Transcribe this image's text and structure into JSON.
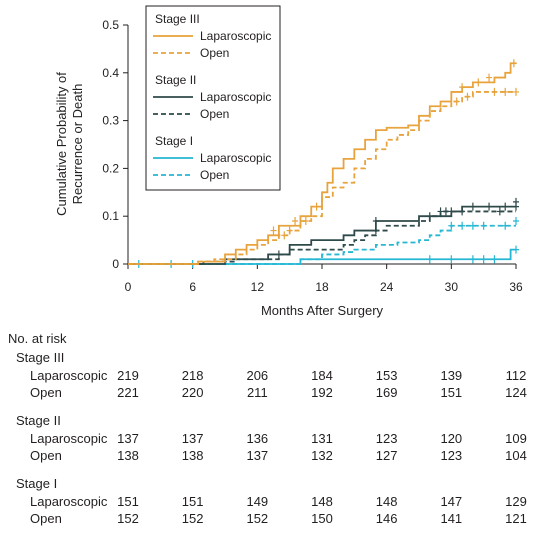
{
  "colors": {
    "stage_iii": "#E8A33D",
    "stage_ii": "#2F4A4A",
    "stage_i": "#25B7D3",
    "axis": "#231f20"
  },
  "chart_data": {
    "type": "line",
    "step": true,
    "title": "",
    "xlabel": "Months After Surgery",
    "ylabel_lines": [
      "Cumulative Probability of",
      "Recurrence or Death"
    ],
    "xlim": [
      0,
      36
    ],
    "ylim": [
      0,
      0.5
    ],
    "xticks": [
      "0",
      "6",
      "12",
      "18",
      "24",
      "30",
      "36"
    ],
    "yticks": [
      "0",
      "0.1",
      "0.2",
      "0.3",
      "0.4",
      "0.5"
    ],
    "grid": false,
    "legend": {
      "position": "top-left",
      "groups": [
        {
          "title": "Stage III",
          "entries": [
            "Laparoscopic",
            "Open"
          ]
        },
        {
          "title": "Stage II",
          "entries": [
            "Laparoscopic",
            "Open"
          ]
        },
        {
          "title": "Stage I",
          "entries": [
            "Laparoscopic",
            "Open"
          ]
        }
      ]
    },
    "series": [
      {
        "group": "Stage III",
        "name": "Laparoscopic",
        "style": "solid",
        "color": "#E8A33D",
        "points": [
          [
            0,
            0
          ],
          [
            6.5,
            0.005
          ],
          [
            9,
            0.02
          ],
          [
            10,
            0.03
          ],
          [
            11,
            0.04
          ],
          [
            12,
            0.05
          ],
          [
            13,
            0.06
          ],
          [
            14,
            0.08
          ],
          [
            16,
            0.1
          ],
          [
            17,
            0.12
          ],
          [
            18,
            0.15
          ],
          [
            18.5,
            0.17
          ],
          [
            19,
            0.2
          ],
          [
            20,
            0.22
          ],
          [
            21,
            0.24
          ],
          [
            22,
            0.26
          ],
          [
            23,
            0.28
          ],
          [
            24,
            0.285
          ],
          [
            26,
            0.29
          ],
          [
            27,
            0.31
          ],
          [
            28,
            0.33
          ],
          [
            29,
            0.34
          ],
          [
            30,
            0.36
          ],
          [
            31,
            0.37
          ],
          [
            32,
            0.38
          ],
          [
            33,
            0.38
          ],
          [
            34,
            0.39
          ],
          [
            35,
            0.4
          ],
          [
            35.5,
            0.42
          ],
          [
            36,
            0.42
          ]
        ],
        "censors": [
          [
            13.5,
            0.07
          ],
          [
            15.5,
            0.09
          ],
          [
            17.5,
            0.12
          ],
          [
            31,
            0.37
          ],
          [
            32.5,
            0.38
          ],
          [
            33.5,
            0.39
          ],
          [
            35.8,
            0.42
          ]
        ]
      },
      {
        "group": "Stage III",
        "name": "Open",
        "style": "dashed",
        "color": "#E8A33D",
        "points": [
          [
            0,
            0
          ],
          [
            6.5,
            0.005
          ],
          [
            8,
            0.01
          ],
          [
            10,
            0.02
          ],
          [
            11,
            0.03
          ],
          [
            12,
            0.04
          ],
          [
            13,
            0.05
          ],
          [
            14,
            0.06
          ],
          [
            15,
            0.07
          ],
          [
            16,
            0.09
          ],
          [
            17,
            0.1
          ],
          [
            18,
            0.14
          ],
          [
            19,
            0.16
          ],
          [
            20,
            0.17
          ],
          [
            21,
            0.2
          ],
          [
            22,
            0.22
          ],
          [
            23,
            0.24
          ],
          [
            24,
            0.26
          ],
          [
            25,
            0.27
          ],
          [
            26,
            0.28
          ],
          [
            27,
            0.3
          ],
          [
            28,
            0.32
          ],
          [
            29,
            0.33
          ],
          [
            30,
            0.34
          ],
          [
            31,
            0.35
          ],
          [
            32,
            0.36
          ],
          [
            36,
            0.36
          ]
        ],
        "censors": [
          [
            14.5,
            0.06
          ],
          [
            15,
            0.07
          ],
          [
            16.5,
            0.09
          ],
          [
            30.5,
            0.34
          ],
          [
            31.5,
            0.35
          ],
          [
            34,
            0.36
          ],
          [
            35,
            0.36
          ],
          [
            36,
            0.36
          ]
        ]
      },
      {
        "group": "Stage II",
        "name": "Laparoscopic",
        "style": "solid",
        "color": "#2F4A4A",
        "points": [
          [
            0,
            0
          ],
          [
            7,
            0
          ],
          [
            9,
            0.01
          ],
          [
            13,
            0.02
          ],
          [
            15,
            0.04
          ],
          [
            17,
            0.05
          ],
          [
            20,
            0.06
          ],
          [
            21,
            0.07
          ],
          [
            23,
            0.09
          ],
          [
            27,
            0.1
          ],
          [
            30,
            0.11
          ],
          [
            31,
            0.12
          ],
          [
            36,
            0.12
          ]
        ],
        "censors": [
          [
            23,
            0.09
          ],
          [
            28,
            0.1
          ],
          [
            29.5,
            0.11
          ],
          [
            32,
            0.12
          ],
          [
            33.5,
            0.12
          ],
          [
            35,
            0.12
          ],
          [
            36,
            0.13
          ]
        ]
      },
      {
        "group": "Stage II",
        "name": "Open",
        "style": "dashed",
        "color": "#2F4A4A",
        "points": [
          [
            0,
            0
          ],
          [
            6,
            0
          ],
          [
            7,
            0.005
          ],
          [
            10,
            0.01
          ],
          [
            14,
            0.02
          ],
          [
            15,
            0.03
          ],
          [
            20,
            0.04
          ],
          [
            21,
            0.05
          ],
          [
            22,
            0.06
          ],
          [
            23,
            0.07
          ],
          [
            24,
            0.08
          ],
          [
            27,
            0.09
          ],
          [
            28,
            0.1
          ],
          [
            29,
            0.11
          ],
          [
            33,
            0.11
          ],
          [
            36,
            0.11
          ]
        ],
        "censors": [
          [
            14,
            0.02
          ],
          [
            23,
            0.07
          ],
          [
            29,
            0.11
          ],
          [
            30,
            0.11
          ],
          [
            31,
            0.11
          ],
          [
            34.5,
            0.11
          ],
          [
            36,
            0.12
          ]
        ]
      },
      {
        "group": "Stage I",
        "name": "Laparoscopic",
        "style": "solid",
        "color": "#25B7D3",
        "points": [
          [
            0,
            0
          ],
          [
            15,
            0
          ],
          [
            16,
            0.01
          ],
          [
            35,
            0.01
          ],
          [
            35.5,
            0.03
          ],
          [
            36,
            0.03
          ]
        ],
        "censors": [
          [
            1,
            0
          ],
          [
            4,
            0
          ],
          [
            6,
            0
          ],
          [
            28,
            0.01
          ],
          [
            30,
            0.01
          ],
          [
            32,
            0.01
          ],
          [
            33,
            0.01
          ],
          [
            34,
            0.01
          ],
          [
            36,
            0.03
          ]
        ]
      },
      {
        "group": "Stage I",
        "name": "Open",
        "style": "dashed",
        "color": "#25B7D3",
        "points": [
          [
            0,
            0
          ],
          [
            15,
            0
          ],
          [
            16,
            0.01
          ],
          [
            18,
            0.02
          ],
          [
            20,
            0.025
          ],
          [
            21,
            0.03
          ],
          [
            23,
            0.04
          ],
          [
            25,
            0.045
          ],
          [
            27,
            0.05
          ],
          [
            28,
            0.06
          ],
          [
            29,
            0.07
          ],
          [
            30,
            0.08
          ],
          [
            36,
            0.08
          ]
        ],
        "censors": [
          [
            30,
            0.08
          ],
          [
            31,
            0.08
          ],
          [
            32,
            0.08
          ],
          [
            33,
            0.08
          ],
          [
            35,
            0.08
          ],
          [
            36,
            0.09
          ]
        ]
      }
    ]
  },
  "risk_table": {
    "title": "No. at risk",
    "groups": [
      {
        "title": "Stage III",
        "rows": [
          {
            "label": "Laparoscopic",
            "values": [
              "219",
              "218",
              "206",
              "184",
              "153",
              "139",
              "112"
            ]
          },
          {
            "label": "Open",
            "values": [
              "221",
              "220",
              "211",
              "192",
              "169",
              "151",
              "124"
            ]
          }
        ]
      },
      {
        "title": "Stage II",
        "rows": [
          {
            "label": "Laparoscopic",
            "values": [
              "137",
              "137",
              "136",
              "131",
              "123",
              "120",
              "109"
            ]
          },
          {
            "label": "Open",
            "values": [
              "138",
              "138",
              "137",
              "132",
              "127",
              "123",
              "104"
            ]
          }
        ]
      },
      {
        "title": "Stage I",
        "rows": [
          {
            "label": "Laparoscopic",
            "values": [
              "151",
              "151",
              "149",
              "148",
              "148",
              "147",
              "129"
            ]
          },
          {
            "label": "Open",
            "values": [
              "152",
              "152",
              "152",
              "150",
              "146",
              "141",
              "121"
            ]
          }
        ]
      }
    ]
  }
}
